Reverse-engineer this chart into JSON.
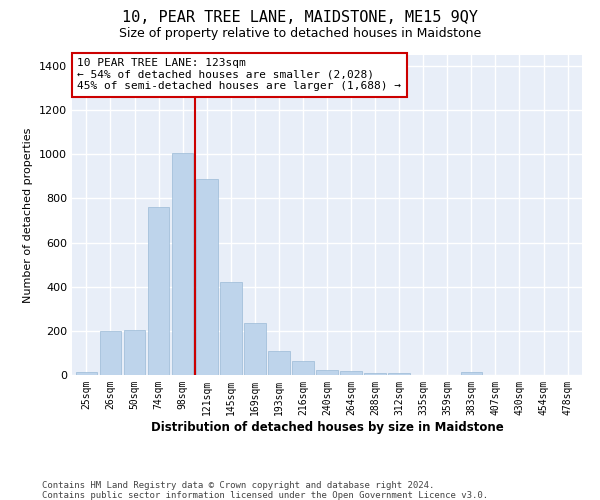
{
  "title": "10, PEAR TREE LANE, MAIDSTONE, ME15 9QY",
  "subtitle": "Size of property relative to detached houses in Maidstone",
  "xlabel": "Distribution of detached houses by size in Maidstone",
  "ylabel": "Number of detached properties",
  "categories": [
    "25sqm",
    "26sqm",
    "50sqm",
    "74sqm",
    "98sqm",
    "121sqm",
    "145sqm",
    "169sqm",
    "193sqm",
    "216sqm",
    "240sqm",
    "264sqm",
    "288sqm",
    "312sqm",
    "335sqm",
    "359sqm",
    "383sqm",
    "407sqm",
    "430sqm",
    "454sqm",
    "478sqm"
  ],
  "values": [
    15,
    200,
    205,
    760,
    1005,
    890,
    420,
    235,
    108,
    65,
    22,
    18,
    8,
    10,
    0,
    0,
    15,
    0,
    0,
    0,
    0
  ],
  "bar_color": "#bed4eb",
  "bar_edge_color": "#9bbad6",
  "vline_color": "#cc0000",
  "vline_position": 4.5,
  "annotation_text": "10 PEAR TREE LANE: 123sqm\n← 54% of detached houses are smaller (2,028)\n45% of semi-detached houses are larger (1,688) →",
  "footnote1": "Contains HM Land Registry data © Crown copyright and database right 2024.",
  "footnote2": "Contains public sector information licensed under the Open Government Licence v3.0.",
  "ylim_max": 1450,
  "yticks": [
    0,
    200,
    400,
    600,
    800,
    1000,
    1200,
    1400
  ],
  "bg_color": "#e8eef8",
  "grid_color": "#ffffff",
  "fig_bg": "#ffffff"
}
